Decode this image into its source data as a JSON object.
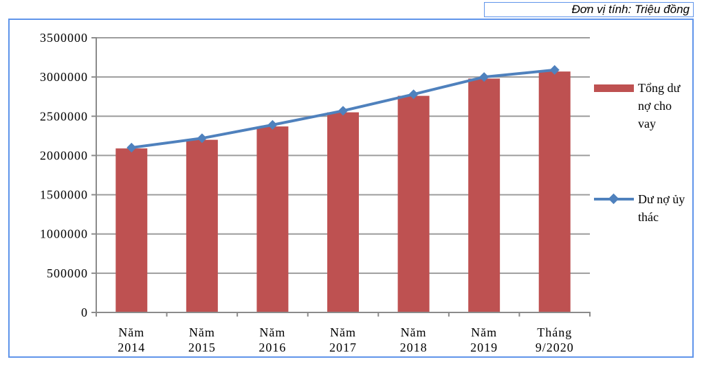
{
  "unit_label": "Đơn vị tính: Triệu đồng",
  "colors": {
    "bar": "#be5151",
    "line": "#4f81bd",
    "chart_border": "#5e93ea",
    "gridline": "#9c9c9c",
    "axis": "#8a8a8a",
    "text": "#000000",
    "background": "#ffffff"
  },
  "chart_data": {
    "type": "bar+line",
    "title": "",
    "xlabel": "",
    "ylabel": "",
    "unit": "Triệu đồng",
    "categories": [
      "Năm 2014",
      "Năm 2015",
      "Năm 2016",
      "Năm 2017",
      "Năm 2018",
      "Năm 2019",
      "Tháng 9/2020"
    ],
    "series": [
      {
        "name": "Tổng dư nợ cho vay",
        "type": "bar",
        "color": "#be5151",
        "values": [
          2090000,
          2200000,
          2370000,
          2550000,
          2760000,
          2980000,
          3070000
        ]
      },
      {
        "name": "Dư nợ ủy thác",
        "type": "line",
        "color": "#4f81bd",
        "marker": "diamond",
        "values": [
          2100000,
          2220000,
          2390000,
          2570000,
          2780000,
          3000000,
          3090000
        ]
      }
    ],
    "ylim": [
      0,
      3500000
    ],
    "yticks": [
      3500000,
      3000000,
      2500000,
      2000000,
      1500000,
      1000000,
      500000,
      0
    ],
    "grid": "horizontal",
    "legend_position": "right"
  }
}
